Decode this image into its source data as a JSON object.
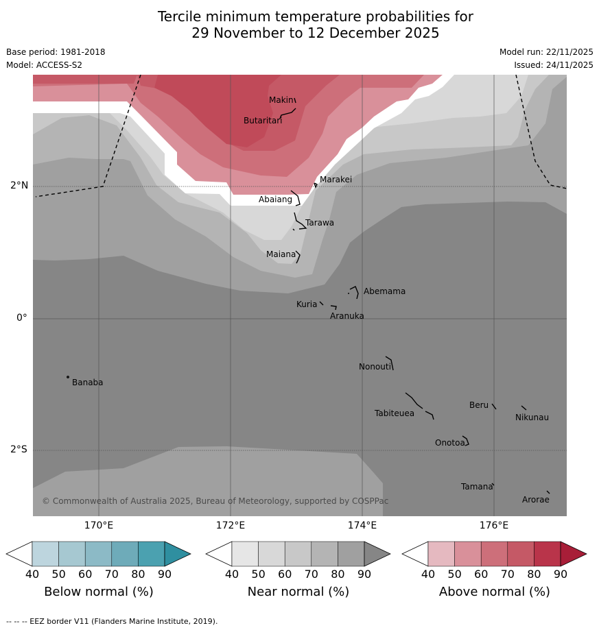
{
  "title_line1": "Tercile minimum temperature probabilities for",
  "title_line2": "29 November to 12 December 2025",
  "base_period": "Base period: 1981-2018",
  "model": "Model: ACCESS-S2",
  "model_run": "Model run: 22/11/2025",
  "issued": "Issued: 24/11/2025",
  "copyright": "© Commonwealth of Australia 2025, Bureau of Meteorology, supported by COSPPac",
  "lon_labels": [
    "170°E",
    "172°E",
    "174°E",
    "176°E"
  ],
  "lat_labels": [
    "2°N",
    "0°",
    "2°S"
  ],
  "islands": [
    "Makin",
    "Butaritari",
    "Marakei",
    "Abaiang",
    "Tarawa",
    "Maiana",
    "Abemama",
    "Kuria",
    "Aranuka",
    "Banaba",
    "Nonouti",
    "Beru",
    "Nikunau",
    "Tabiteuea",
    "Onotoa",
    "Tamana",
    "Arorae"
  ],
  "colorbars": [
    {
      "title": "Below normal (%)",
      "ticks": [
        "40",
        "50",
        "60",
        "70",
        "80",
        "90"
      ],
      "colors": [
        "#ffffff",
        "#bdd5de",
        "#a6c8d1",
        "#8cbac6",
        "#6eabb9",
        "#4ba1b0",
        "#2f8fa0"
      ]
    },
    {
      "title": "Near normal (%)",
      "ticks": [
        "40",
        "50",
        "60",
        "70",
        "80",
        "90"
      ],
      "colors": [
        "#ffffff",
        "#e6e6e6",
        "#d8d8d8",
        "#c8c8c8",
        "#b4b4b4",
        "#a0a0a0",
        "#868686"
      ]
    },
    {
      "title": "Above normal (%)",
      "ticks": [
        "40",
        "50",
        "60",
        "70",
        "80",
        "90"
      ],
      "colors": [
        "#ffffff",
        "#e5b9c0",
        "#d9909a",
        "#cd6f7a",
        "#c55966",
        "#b9344a",
        "#a81e38"
      ]
    }
  ],
  "footer": "-- -- -- EEZ border V11 (Flanders Marine Institute, 2019)."
}
